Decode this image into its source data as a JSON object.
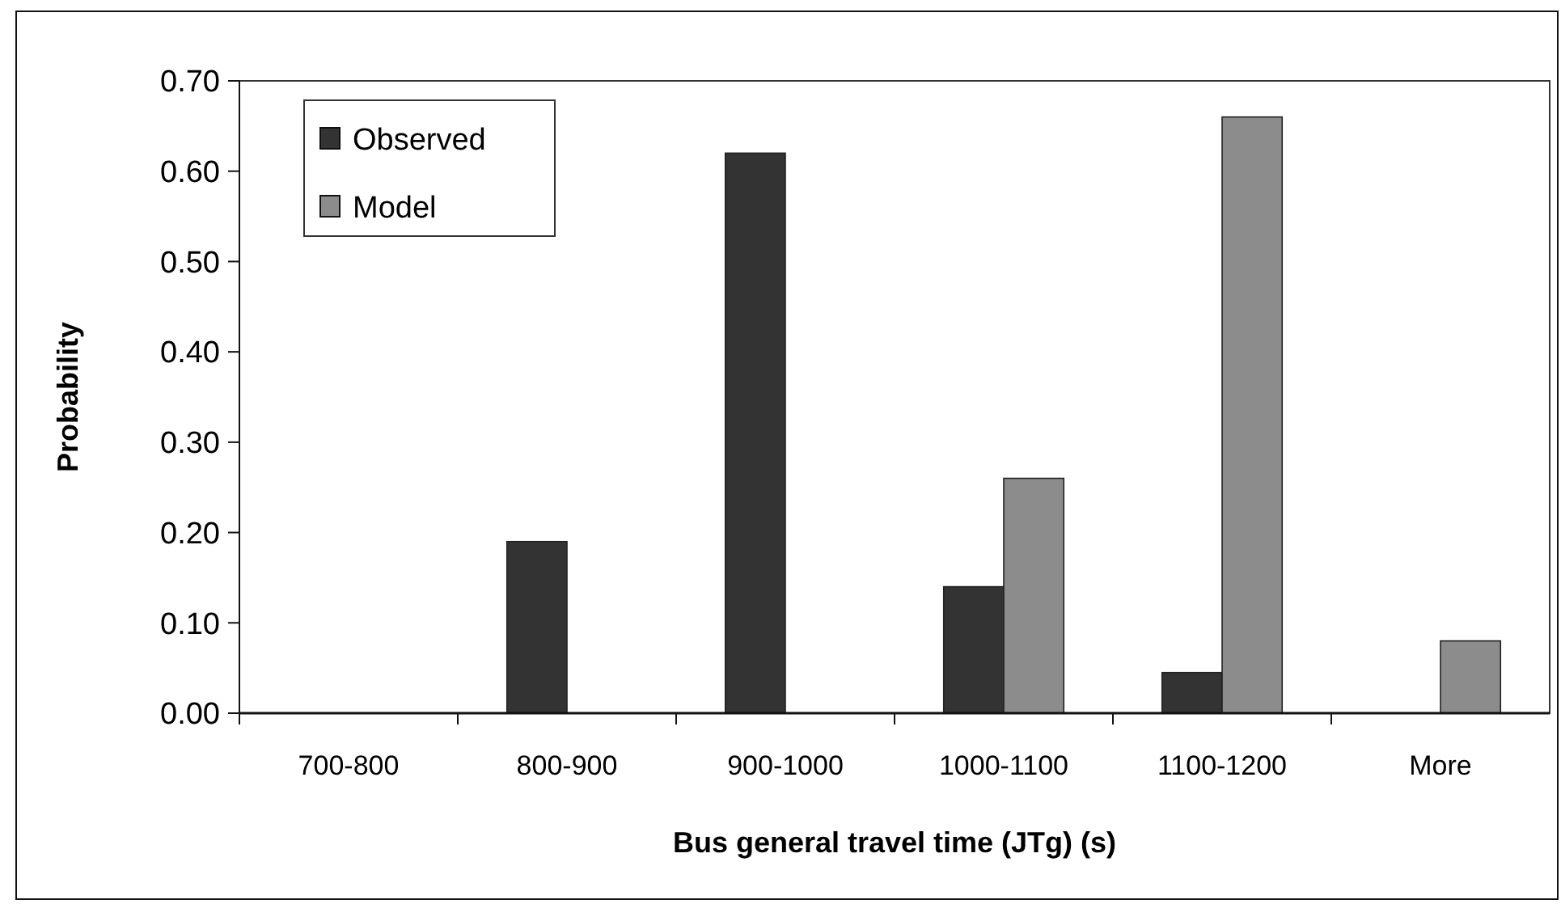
{
  "chart_data": {
    "type": "bar",
    "xlabel": "Bus general travel time (JTg) (s)",
    "ylabel": "Probability",
    "categories": [
      "700-800",
      "800-900",
      "900-1000",
      "1000-1100",
      "1100-1200",
      "More"
    ],
    "series": [
      {
        "name": "Observed",
        "color": "#333333",
        "values": [
          0,
          0.19,
          0.62,
          0.14,
          0.045,
          0
        ]
      },
      {
        "name": "Model",
        "color": "#8c8c8c",
        "values": [
          0,
          0,
          0,
          0.26,
          0.66,
          0.08
        ]
      }
    ],
    "ylim": [
      0,
      0.7
    ],
    "yticks": [
      {
        "value": 0,
        "label": "0.00"
      },
      {
        "value": 0.1,
        "label": "0.10"
      },
      {
        "value": 0.2,
        "label": "0.20"
      },
      {
        "value": 0.3,
        "label": "0.30"
      },
      {
        "value": 0.4,
        "label": "0.40"
      },
      {
        "value": 0.5,
        "label": "0.50"
      },
      {
        "value": 0.6,
        "label": "0.60"
      },
      {
        "value": 0.7,
        "label": "0.70"
      }
    ],
    "legend": "top left"
  }
}
